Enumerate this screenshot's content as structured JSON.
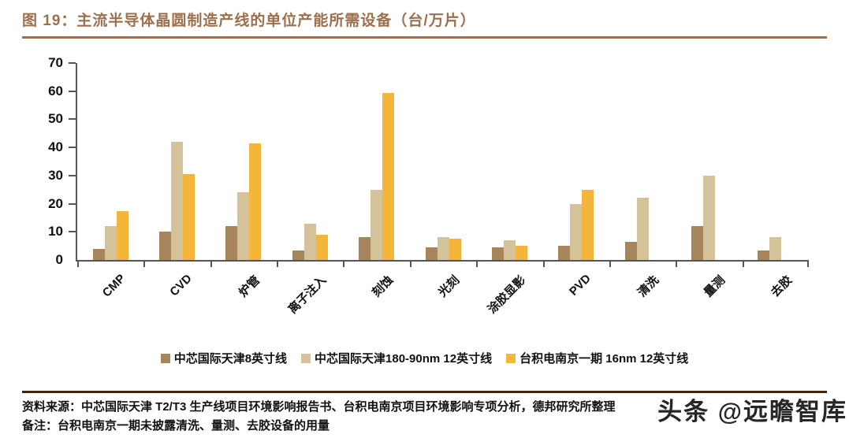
{
  "figure": {
    "title": "图 19：主流半导体晶圆制造产线的单位产能所需设备（台/万片）"
  },
  "chart_data": {
    "type": "bar",
    "title": "主流半导体晶圆制造产线的单位产能所需设备（台/万片）",
    "categories": [
      "CMP",
      "CVD",
      "炉管",
      "离子注入",
      "刻蚀",
      "光刻",
      "涂胶显影",
      "PVD",
      "清洗",
      "量测",
      "去胶"
    ],
    "series": [
      {
        "name": "中芯国际天津8英寸线",
        "color": "#A6845C",
        "values": [
          4,
          10,
          12,
          3.5,
          8,
          4.5,
          4.5,
          5,
          6.5,
          12,
          3.5
        ]
      },
      {
        "name": "中芯国际天津180-90nm 12英寸线",
        "color": "#D3C29A",
        "values": [
          12,
          42,
          24,
          13,
          25,
          8,
          7,
          20,
          22,
          30,
          8
        ]
      },
      {
        "name": "台积电南京一期 16nm 12英寸线",
        "color": "#F4B63A",
        "values": [
          17.5,
          30.5,
          41.5,
          9,
          59.5,
          7.5,
          5,
          25,
          null,
          null,
          null
        ]
      }
    ],
    "xlabel": "",
    "ylabel": "",
    "ylim": [
      0,
      70
    ],
    "ytick_step": 10,
    "grid": false,
    "legend_position": "bottom"
  },
  "footer": {
    "source": "资料来源：中芯国际天津 T2/T3 生产线项目环境影响报告书、台积电南京项目环境影响专项分析，德邦研究所整理",
    "note": "备注：台积电南京一期未披露清洗、量测、去胶设备的用量"
  },
  "watermark": "头条 @远瞻智库",
  "colors": {
    "title": "#9C6F4D",
    "title_rule": "#9C6F4D",
    "footer_rule": "#46230B",
    "axis": "#555555"
  }
}
